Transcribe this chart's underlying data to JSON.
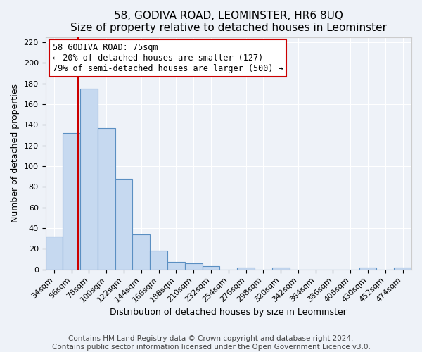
{
  "title": "58, GODIVA ROAD, LEOMINSTER, HR6 8UQ",
  "subtitle": "Size of property relative to detached houses in Leominster",
  "xlabel": "Distribution of detached houses by size in Leominster",
  "ylabel": "Number of detached properties",
  "bin_labels": [
    "34sqm",
    "56sqm",
    "78sqm",
    "100sqm",
    "122sqm",
    "144sqm",
    "166sqm",
    "188sqm",
    "210sqm",
    "232sqm",
    "254sqm",
    "276sqm",
    "298sqm",
    "320sqm",
    "342sqm",
    "364sqm",
    "386sqm",
    "408sqm",
    "430sqm",
    "452sqm",
    "474sqm"
  ],
  "bin_edges": [
    34,
    56,
    78,
    100,
    122,
    144,
    166,
    188,
    210,
    232,
    254,
    276,
    298,
    320,
    342,
    364,
    386,
    408,
    430,
    452,
    474
  ],
  "bar_heights": [
    32,
    132,
    175,
    137,
    88,
    34,
    18,
    7,
    6,
    3,
    0,
    2,
    0,
    2,
    0,
    0,
    0,
    0,
    2,
    0,
    2
  ],
  "bar_color": "#c6d9f0",
  "bar_edge_color": "#5a8fc2",
  "vline_x": 75,
  "vline_color": "#cc0000",
  "annotation_title": "58 GODIVA ROAD: 75sqm",
  "annotation_line1": "← 20% of detached houses are smaller (127)",
  "annotation_line2": "79% of semi-detached houses are larger (500) →",
  "ylim": [
    0,
    225
  ],
  "yticks": [
    0,
    20,
    40,
    60,
    80,
    100,
    120,
    140,
    160,
    180,
    200,
    220
  ],
  "footer1": "Contains HM Land Registry data © Crown copyright and database right 2024.",
  "footer2": "Contains public sector information licensed under the Open Government Licence v3.0.",
  "bg_color": "#eef2f8",
  "grid_color": "#ffffff",
  "title_fontsize": 11,
  "axis_label_fontsize": 9,
  "tick_fontsize": 8,
  "footer_fontsize": 7.5,
  "bin_width": 22
}
